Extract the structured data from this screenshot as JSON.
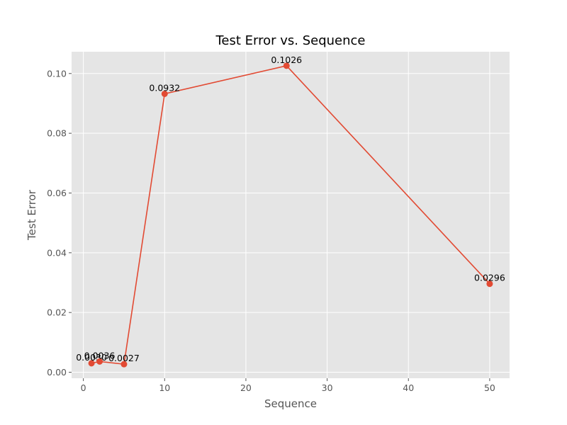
{
  "chart_data": {
    "type": "line",
    "title": "Test Error vs. Sequence",
    "xlabel": "Sequence",
    "ylabel": "Test Error",
    "xlim": [
      -1.45,
      52.45
    ],
    "ylim": [
      -0.00201,
      0.1073
    ],
    "x_ticks": [
      0,
      10,
      20,
      30,
      40,
      50
    ],
    "y_ticks": [
      0.0,
      0.02,
      0.04,
      0.06,
      0.08,
      0.1
    ],
    "y_tick_labels": [
      "0.00",
      "0.02",
      "0.04",
      "0.06",
      "0.08",
      "0.10"
    ],
    "grid": true,
    "legend": "none",
    "series": [
      {
        "color": "#e24a33",
        "x": [
          1,
          2,
          5,
          10,
          25,
          50
        ],
        "y": [
          0.003,
          0.0036,
          0.0027,
          0.0932,
          0.1026,
          0.0296
        ],
        "labels": [
          "0.0030",
          "0.0036",
          "0.0027",
          "0.0932",
          "0.1026",
          "0.0296"
        ]
      }
    ],
    "colors": {
      "plot_background": "#e5e5e5",
      "grid": "#ffffff",
      "line": "#e24a33"
    }
  }
}
